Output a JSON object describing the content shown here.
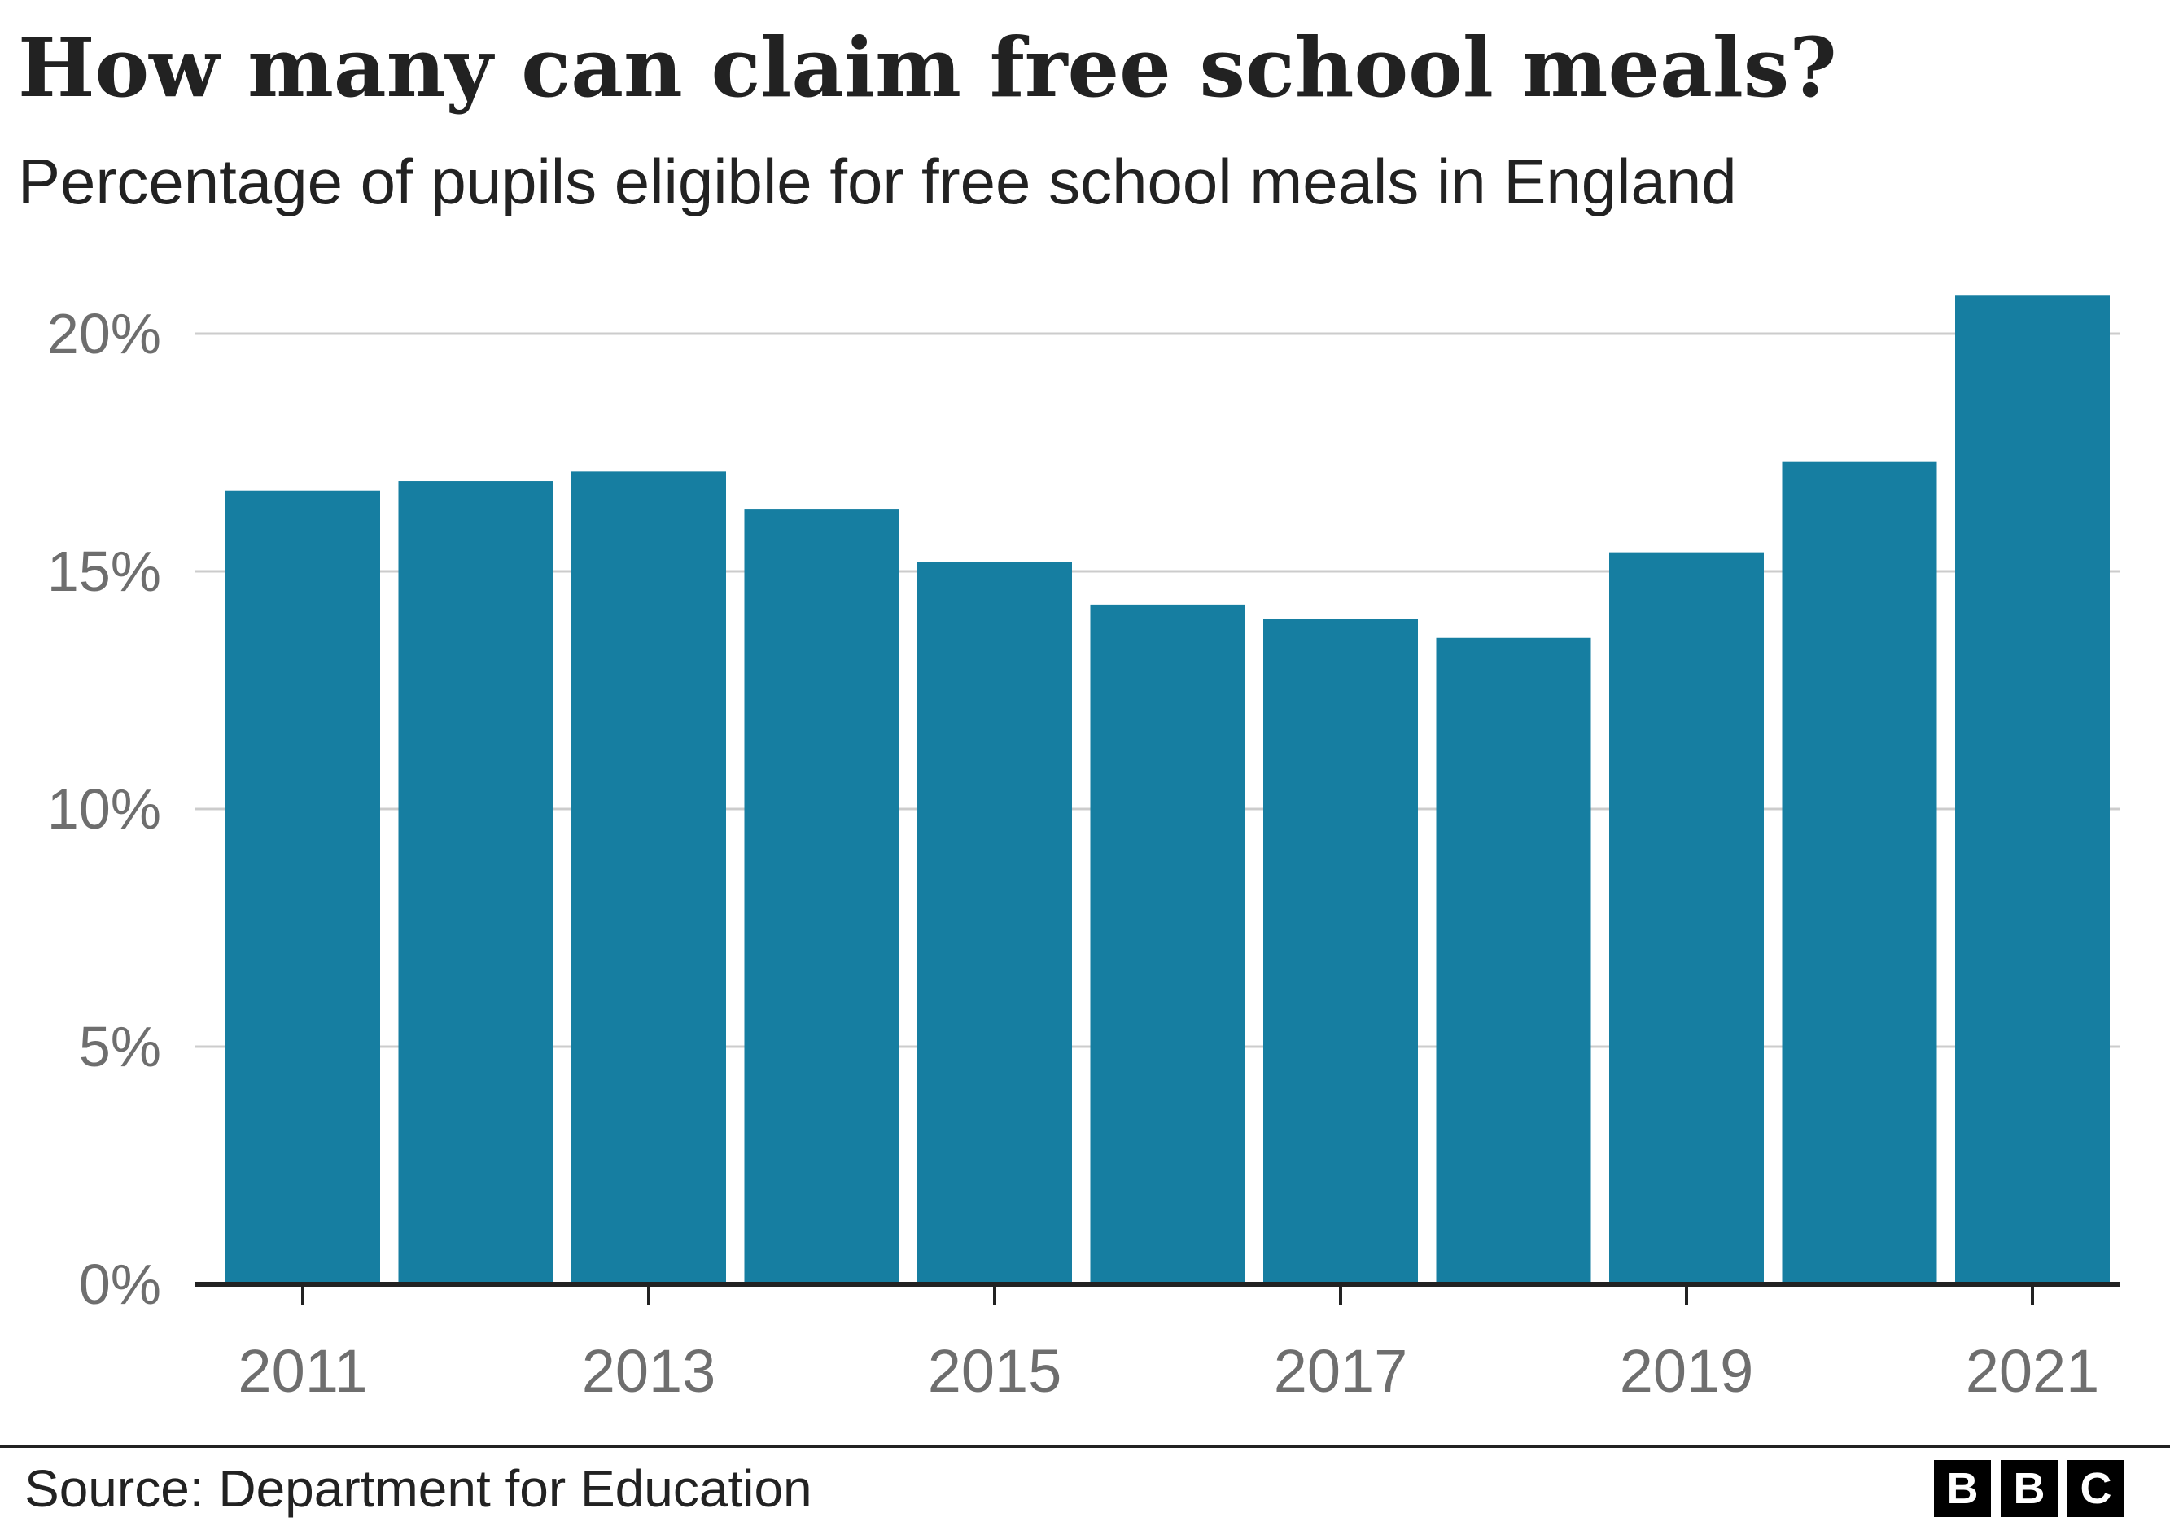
{
  "title": "How many can claim free school meals?",
  "subtitle": "Percentage of pupils eligible for free school meals in England",
  "source": "Source: Department for Education",
  "logo": [
    "B",
    "B",
    "C"
  ],
  "colors": {
    "bar": "#167ea1",
    "grid": "#cccccc",
    "axis": "#222222",
    "tick_text": "#6e6e6e",
    "text": "#222222"
  },
  "chart_data": {
    "type": "bar",
    "title": "How many can claim free school meals?",
    "subtitle": "Percentage of pupils eligible for free school meals in England",
    "xlabel": "",
    "ylabel": "",
    "x": [
      2011,
      2012,
      2013,
      2014,
      2015,
      2016,
      2017,
      2018,
      2019,
      2020,
      2021
    ],
    "values": [
      16.7,
      16.9,
      17.1,
      16.3,
      15.2,
      14.3,
      14.0,
      13.6,
      15.4,
      17.3,
      20.8
    ],
    "x_tick_labels": [
      "2011",
      "2013",
      "2015",
      "2017",
      "2019",
      "2021"
    ],
    "y_ticks": [
      0,
      5,
      10,
      15,
      20
    ],
    "y_tick_labels": [
      "0%",
      "5%",
      "10%",
      "15%",
      "20%"
    ],
    "ylim": [
      0,
      20
    ],
    "grid": true,
    "legend": "none"
  }
}
